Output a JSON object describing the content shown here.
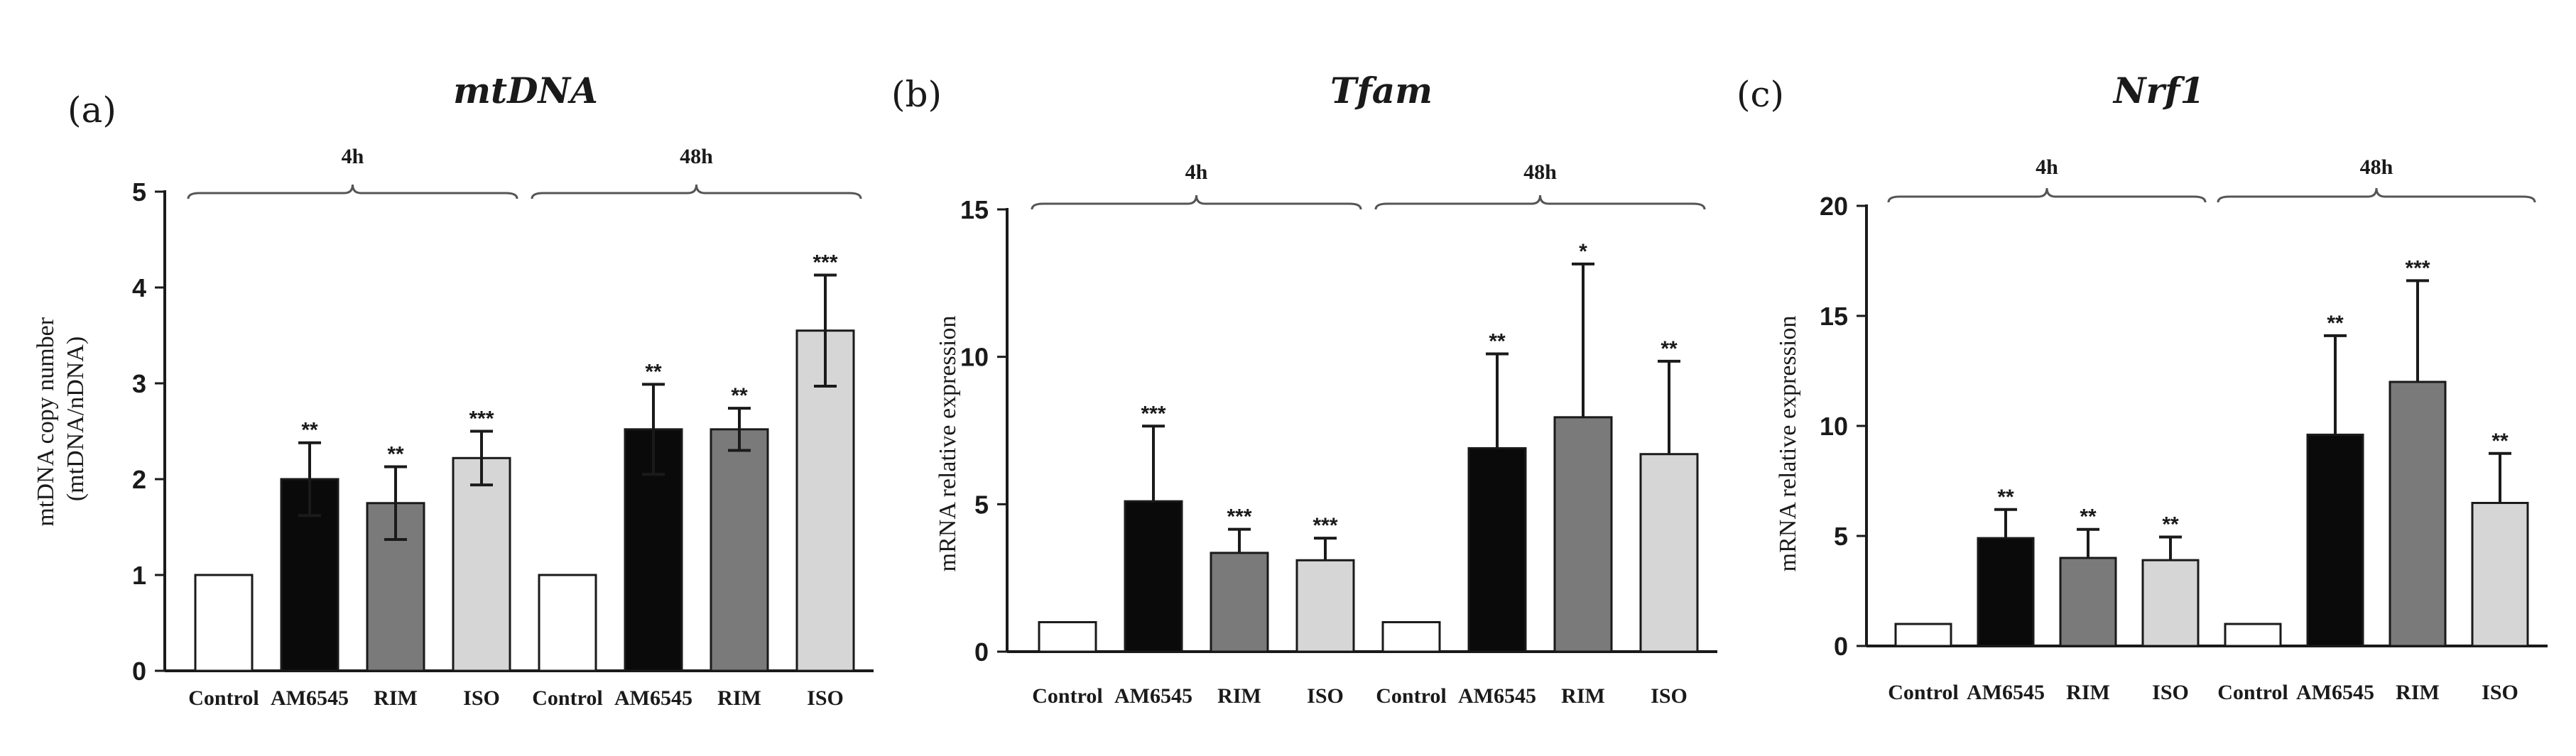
{
  "chart_data": [
    {
      "type": "bar",
      "panel_label": "(a)",
      "title": "mtDNA",
      "ylabel_lines": [
        "mtDNA copy number",
        "(mtDNA/nDNA)"
      ],
      "ylim": [
        0,
        5
      ],
      "yticks": [
        "0",
        "1",
        "2",
        "3",
        "4",
        "5"
      ],
      "categories": [
        "Control",
        "AM6545",
        "RIM",
        "ISO",
        "Control",
        "AM6545",
        "RIM",
        "ISO"
      ],
      "values": [
        1,
        2.0,
        1.75,
        2.22,
        1,
        2.52,
        2.52,
        3.55
      ],
      "errors": [
        0,
        0.38,
        0.38,
        0.28,
        0,
        0.47,
        0.22,
        0.58
      ],
      "error_style": "both",
      "significance": [
        "",
        "**",
        "**",
        "***",
        "",
        "**",
        "**",
        "***"
      ],
      "groups": [
        {
          "label": "4h",
          "from": 0,
          "to": 3
        },
        {
          "label": "48h",
          "from": 4,
          "to": 7
        }
      ]
    },
    {
      "type": "bar",
      "panel_label": "(b)",
      "title": "Tfam",
      "ylabel_lines": [
        "mRNA relative expression"
      ],
      "ylim": [
        0,
        15
      ],
      "yticks": [
        "0",
        "5",
        "10",
        "15"
      ],
      "categories": [
        "Control",
        "AM6545",
        "RIM",
        "ISO",
        "Control",
        "AM6545",
        "RIM",
        "ISO"
      ],
      "values": [
        1,
        5.1,
        3.35,
        3.1,
        1,
        6.9,
        7.95,
        6.7
      ],
      "errors": [
        0,
        2.55,
        0.8,
        0.75,
        0,
        3.2,
        5.2,
        3.15
      ],
      "error_style": "up",
      "significance": [
        "",
        "***",
        "***",
        "***",
        "",
        "**",
        "*",
        "**"
      ],
      "groups": [
        {
          "label": "4h",
          "from": 0,
          "to": 3
        },
        {
          "label": "48h",
          "from": 4,
          "to": 7
        }
      ]
    },
    {
      "type": "bar",
      "panel_label": "(c)",
      "title": "Nrf1",
      "ylabel_lines": [
        "mRNA relative expression"
      ],
      "ylim": [
        0,
        20
      ],
      "yticks": [
        "0",
        "5",
        "10",
        "15",
        "20"
      ],
      "categories": [
        "Control",
        "AM6545",
        "RIM",
        "ISO",
        "Control",
        "AM6545",
        "RIM",
        "ISO"
      ],
      "values": [
        1,
        4.9,
        4.0,
        3.9,
        1,
        9.6,
        12.0,
        6.5
      ],
      "errors": [
        0,
        1.3,
        1.3,
        1.05,
        0,
        4.5,
        4.6,
        2.25
      ],
      "error_style": "up",
      "significance": [
        "",
        "**",
        "**",
        "**",
        "",
        "**",
        "***",
        "**"
      ],
      "groups": [
        {
          "label": "4h",
          "from": 0,
          "to": 3
        },
        {
          "label": "48h",
          "from": 4,
          "to": 7
        }
      ]
    }
  ],
  "colors": {
    "bar_fills": [
      "#ffffff",
      "#0a0a0a",
      "#7a7a7a",
      "#d6d6d6",
      "#ffffff",
      "#0a0a0a",
      "#7a7a7a",
      "#d6d6d6"
    ],
    "stroke": "#1a1a1a"
  }
}
